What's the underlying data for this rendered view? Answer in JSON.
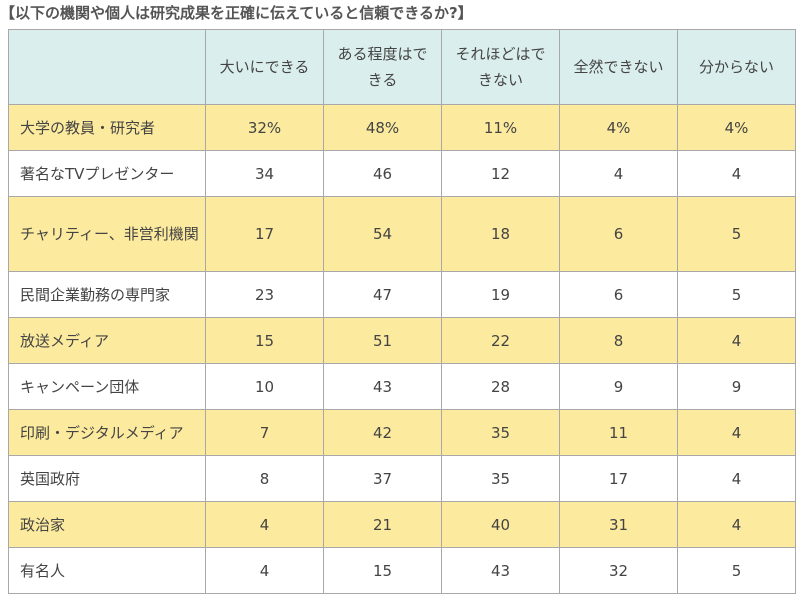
{
  "title": "【以下の機関や個人は研究成果を正確に伝えていると信頼できるか?】",
  "columns": [
    "大いにできる",
    "ある程度はできる",
    "それほどはできない",
    "全然できない",
    "分からない"
  ],
  "rows": [
    {
      "label": "大学の教員・研究者",
      "values": [
        "32%",
        "48%",
        "11%",
        "4%",
        "4%"
      ]
    },
    {
      "label": "著名なTVプレゼンター",
      "values": [
        "34",
        "46",
        "12",
        "4",
        "4"
      ]
    },
    {
      "label": "チャリティー、非営利機関",
      "values": [
        "17",
        "54",
        "18",
        "6",
        "5"
      ]
    },
    {
      "label": "民間企業勤務の専門家",
      "values": [
        "23",
        "47",
        "19",
        "6",
        "5"
      ]
    },
    {
      "label": "放送メディア",
      "values": [
        "15",
        "51",
        "22",
        "8",
        "4"
      ]
    },
    {
      "label": "キャンペーン団体",
      "values": [
        "10",
        "43",
        "28",
        "9",
        "9"
      ]
    },
    {
      "label": "印刷・デジタルメディア",
      "values": [
        "7",
        "42",
        "35",
        "11",
        "4"
      ]
    },
    {
      "label": "英国政府",
      "values": [
        "8",
        "37",
        "35",
        "17",
        "4"
      ]
    },
    {
      "label": "政治家",
      "values": [
        "4",
        "21",
        "40",
        "31",
        "4"
      ]
    },
    {
      "label": "有名人",
      "values": [
        "4",
        "15",
        "43",
        "32",
        "5"
      ]
    }
  ],
  "colors": {
    "header_bg": "#daeeed",
    "highlight_row_bg": "#fcea9e",
    "plain_row_bg": "#ffffff",
    "border": "#a8a8a8"
  }
}
